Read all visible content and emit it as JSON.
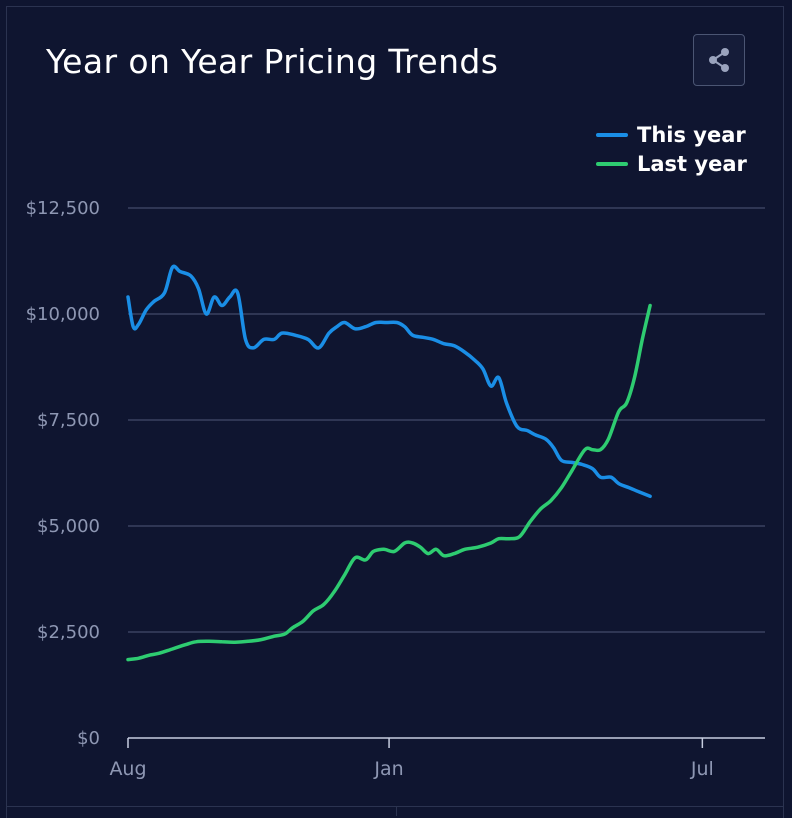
{
  "header": {
    "title": "Year on Year Pricing Trends",
    "share_icon": "share-icon"
  },
  "chart_data": {
    "type": "line",
    "title": "Year on Year Pricing Trends",
    "xlabel": "",
    "ylabel": "",
    "x_tick_labels": [
      "Aug",
      "Jan",
      "Jul"
    ],
    "x_tick_months": [
      0,
      5,
      11
    ],
    "x_range_months": [
      0,
      12.2
    ],
    "y_ticks": [
      0,
      2500,
      5000,
      7500,
      10000,
      12500
    ],
    "y_tick_labels": [
      "$0",
      "$2,500",
      "$5,000",
      "$7,500",
      "$10,000",
      "$12,500"
    ],
    "ylim": [
      0,
      12500
    ],
    "grid": true,
    "legend_position": "top-right",
    "series": [
      {
        "name": "This year",
        "color": "#1a8ee6",
        "points": [
          [
            0.0,
            10400
          ],
          [
            0.1,
            9700
          ],
          [
            0.2,
            9750
          ],
          [
            0.35,
            10100
          ],
          [
            0.5,
            10300
          ],
          [
            0.7,
            10500
          ],
          [
            0.85,
            11100
          ],
          [
            1.0,
            11000
          ],
          [
            1.2,
            10900
          ],
          [
            1.35,
            10600
          ],
          [
            1.5,
            10000
          ],
          [
            1.65,
            10400
          ],
          [
            1.8,
            10200
          ],
          [
            1.95,
            10400
          ],
          [
            2.1,
            10500
          ],
          [
            2.25,
            9400
          ],
          [
            2.4,
            9200
          ],
          [
            2.6,
            9400
          ],
          [
            2.8,
            9400
          ],
          [
            2.95,
            9550
          ],
          [
            3.2,
            9500
          ],
          [
            3.45,
            9400
          ],
          [
            3.65,
            9200
          ],
          [
            3.85,
            9550
          ],
          [
            4.0,
            9700
          ],
          [
            4.15,
            9800
          ],
          [
            4.35,
            9650
          ],
          [
            4.55,
            9700
          ],
          [
            4.75,
            9800
          ],
          [
            4.95,
            9800
          ],
          [
            5.15,
            9800
          ],
          [
            5.3,
            9700
          ],
          [
            5.45,
            9500
          ],
          [
            5.65,
            9450
          ],
          [
            5.85,
            9400
          ],
          [
            6.05,
            9300
          ],
          [
            6.25,
            9250
          ],
          [
            6.45,
            9100
          ],
          [
            6.65,
            8900
          ],
          [
            6.8,
            8700
          ],
          [
            6.95,
            8300
          ],
          [
            7.1,
            8500
          ],
          [
            7.25,
            7900
          ],
          [
            7.45,
            7350
          ],
          [
            7.65,
            7250
          ],
          [
            7.8,
            7150
          ],
          [
            8.0,
            7050
          ],
          [
            8.15,
            6850
          ],
          [
            8.3,
            6550
          ],
          [
            8.5,
            6500
          ],
          [
            8.7,
            6450
          ],
          [
            8.9,
            6350
          ],
          [
            9.05,
            6150
          ],
          [
            9.25,
            6150
          ],
          [
            9.4,
            6000
          ],
          [
            9.6,
            5900
          ],
          [
            9.8,
            5800
          ],
          [
            10.0,
            5700
          ]
        ]
      },
      {
        "name": "Last year",
        "color": "#2ecc71",
        "points": [
          [
            0.0,
            1850
          ],
          [
            0.2,
            1880
          ],
          [
            0.4,
            1950
          ],
          [
            0.6,
            2000
          ],
          [
            0.85,
            2100
          ],
          [
            1.1,
            2200
          ],
          [
            1.3,
            2270
          ],
          [
            1.55,
            2280
          ],
          [
            1.8,
            2270
          ],
          [
            2.05,
            2260
          ],
          [
            2.3,
            2280
          ],
          [
            2.55,
            2320
          ],
          [
            2.8,
            2400
          ],
          [
            3.0,
            2450
          ],
          [
            3.15,
            2600
          ],
          [
            3.35,
            2750
          ],
          [
            3.55,
            3000
          ],
          [
            3.75,
            3150
          ],
          [
            3.95,
            3450
          ],
          [
            4.15,
            3850
          ],
          [
            4.35,
            4250
          ],
          [
            4.55,
            4200
          ],
          [
            4.7,
            4400
          ],
          [
            4.9,
            4450
          ],
          [
            5.1,
            4400
          ],
          [
            5.3,
            4600
          ],
          [
            5.45,
            4600
          ],
          [
            5.6,
            4500
          ],
          [
            5.75,
            4350
          ],
          [
            5.9,
            4450
          ],
          [
            6.05,
            4300
          ],
          [
            6.25,
            4350
          ],
          [
            6.45,
            4450
          ],
          [
            6.7,
            4500
          ],
          [
            6.95,
            4600
          ],
          [
            7.1,
            4700
          ],
          [
            7.3,
            4700
          ],
          [
            7.5,
            4750
          ],
          [
            7.7,
            5100
          ],
          [
            7.9,
            5400
          ],
          [
            8.1,
            5600
          ],
          [
            8.3,
            5900
          ],
          [
            8.5,
            6300
          ],
          [
            8.75,
            6800
          ],
          [
            8.9,
            6800
          ],
          [
            9.05,
            6800
          ],
          [
            9.2,
            7050
          ],
          [
            9.4,
            7700
          ],
          [
            9.55,
            7900
          ],
          [
            9.7,
            8500
          ],
          [
            9.85,
            9400
          ],
          [
            10.0,
            10200
          ]
        ]
      }
    ]
  }
}
